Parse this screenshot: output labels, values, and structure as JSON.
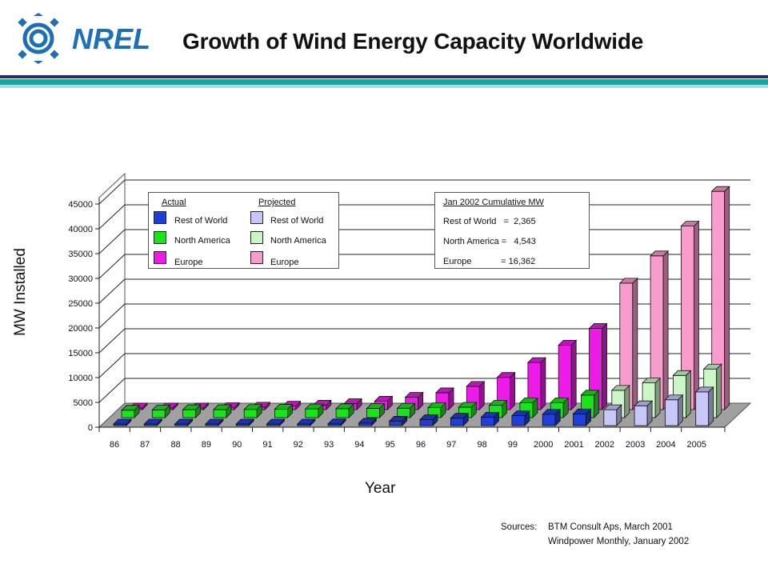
{
  "slide": {
    "title": "Growth of Wind Energy Capacity Worldwide",
    "logo_text": "NREL",
    "sources_label": "Sources:",
    "sources": [
      "BTM Consult Aps, March 2001",
      "Windpower Monthly, January 2002"
    ]
  },
  "colors": {
    "row_actual": "#1f3fd8",
    "na_actual": "#19e419",
    "eu_actual": "#ee1ae8",
    "row_projected": "#c8c8f8",
    "na_projected": "#cdf6c8",
    "eu_projected": "#f79ccc",
    "floor": "#a0a0a0",
    "logo_blue": "#1d70b8",
    "rule_navy": "#1f2f6b",
    "rule_teal": "#12a9a9"
  },
  "legend_series": {
    "actual_header": "Actual",
    "projected_header": "Projected",
    "actual": [
      {
        "label": "Rest of World",
        "color_key": "row_actual"
      },
      {
        "label": "North America",
        "color_key": "na_actual"
      },
      {
        "label": "Europe",
        "color_key": "eu_actual"
      }
    ],
    "projected": [
      {
        "label": "Rest of World",
        "color_key": "row_projected"
      },
      {
        "label": "North America",
        "color_key": "na_projected"
      },
      {
        "label": "Europe",
        "color_key": "eu_projected"
      }
    ]
  },
  "legend_cumulative": {
    "title": "Jan 2002 Cumulative MW",
    "rows": [
      "Rest of World   =  2,365",
      "North America =   4,543",
      "Europe            = 16,362"
    ]
  },
  "chart_data": {
    "type": "bar",
    "style": "3d-depth",
    "xlabel": "Year",
    "ylabel": "MW Installed",
    "ylim": [
      0,
      45000
    ],
    "yticks": [
      0,
      5000,
      10000,
      15000,
      20000,
      25000,
      30000,
      35000,
      40000,
      45000
    ],
    "grid": true,
    "categories": [
      "86",
      "87",
      "88",
      "89",
      "90",
      "91",
      "92",
      "93",
      "94",
      "95",
      "96",
      "97",
      "98",
      "99",
      "2000",
      "2001",
      "2002",
      "2003",
      "2004",
      "2005"
    ],
    "projected_from_index": 16,
    "series": [
      {
        "name": "Rest of World",
        "values": [
          100,
          100,
          100,
          150,
          200,
          250,
          300,
          350,
          500,
          900,
          1200,
          1500,
          1700,
          2000,
          2300,
          2365,
          3200,
          4000,
          5200,
          6800
        ]
      },
      {
        "name": "North America",
        "values": [
          1500,
          1550,
          1600,
          1600,
          1650,
          1700,
          1750,
          1800,
          1850,
          1900,
          2000,
          2100,
          2500,
          3000,
          3000,
          4543,
          5500,
          7000,
          8500,
          9800
        ]
      },
      {
        "name": "Europe",
        "values": [
          200,
          250,
          300,
          400,
          500,
          700,
          900,
          1200,
          1700,
          2500,
          3400,
          4700,
          6500,
          9500,
          13000,
          16362,
          25500,
          31000,
          37000,
          44000
        ]
      }
    ]
  }
}
